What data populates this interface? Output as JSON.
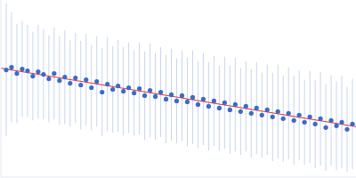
{
  "chart_data": {
    "type": "scatter",
    "xlim": [
      0,
      400
    ],
    "ylim": [
      0,
      200
    ],
    "tick_labels": false,
    "grid": false,
    "series": [
      {
        "type": "scatter",
        "color": "#3a6bc8",
        "marker": "circle",
        "x": [
          6,
          12,
          18,
          24,
          30,
          36,
          42,
          48,
          54,
          60,
          66,
          72,
          78,
          84,
          90,
          96,
          102,
          108,
          114,
          120,
          126,
          132,
          138,
          144,
          150,
          156,
          162,
          168,
          174,
          180,
          186,
          192,
          198,
          204,
          210,
          216,
          222,
          228,
          234,
          240,
          246,
          252,
          258,
          264,
          270,
          276,
          282,
          288,
          294,
          300,
          306,
          312,
          318,
          324,
          330,
          336,
          342,
          348,
          354,
          360,
          366,
          372,
          378,
          384,
          390,
          396
        ],
        "values": [
          121,
          124,
          117,
          122,
          120,
          114,
          119,
          116,
          111,
          117,
          109,
          113,
          106,
          112,
          104,
          110,
          101,
          108,
          96,
          105,
          99,
          103,
          97,
          101,
          95,
          100,
          92,
          98,
          91,
          96,
          88,
          93,
          86,
          92,
          85,
          90,
          82,
          88,
          80,
          86,
          78,
          84,
          76,
          82,
          74,
          80,
          72,
          78,
          70,
          76,
          68,
          74,
          66,
          72,
          64,
          70,
          62,
          68,
          60,
          66,
          56,
          64,
          58,
          62,
          54,
          60
        ],
        "errors": [
          75,
          62,
          56,
          54,
          52,
          50,
          53,
          51,
          49,
          52,
          50,
          53,
          49,
          51,
          50,
          52,
          48,
          51,
          50,
          53,
          49,
          52,
          50,
          51,
          48,
          52,
          50,
          53,
          49,
          51,
          50,
          52,
          48,
          51,
          50,
          53,
          49,
          52,
          50,
          51,
          48,
          52,
          50,
          53,
          49,
          51,
          50,
          52,
          48,
          51,
          50,
          53,
          49,
          52,
          50,
          51,
          48,
          52,
          50,
          53,
          49,
          51,
          50,
          52,
          48,
          51
        ]
      },
      {
        "type": "line",
        "color": "#e03030",
        "line_style": "solid",
        "x": [
          0,
          400
        ],
        "values": [
          123,
          57
        ]
      }
    ]
  }
}
